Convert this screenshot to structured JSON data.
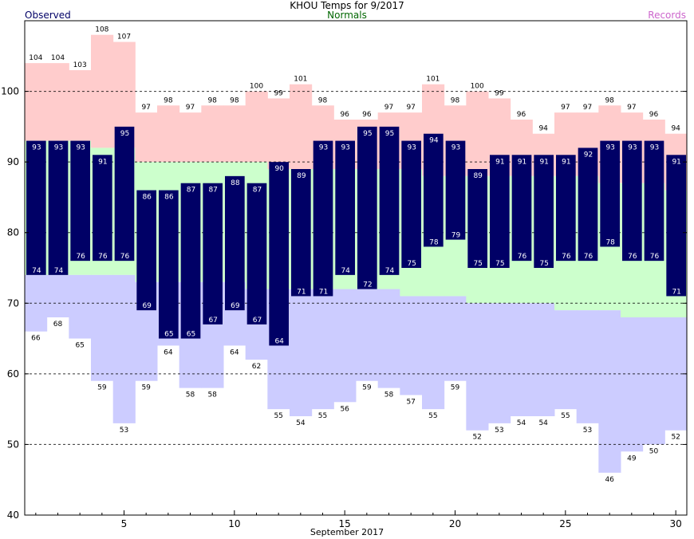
{
  "header": {
    "title": "KHOU Temps for 9/2017",
    "normals_label": "Normals",
    "observed_label": "Observed",
    "records_label": "Records"
  },
  "colors": {
    "record_band": "#ffcccc",
    "normal_band": "#ccffcc",
    "record_low_band": "#ccccff",
    "observed_bar": "#000066",
    "observed_text": "#ffffff",
    "grid": "#000000"
  },
  "chart_data": {
    "type": "bar",
    "title": "KHOU Temps for 9/2017",
    "xlabel": "September 2017",
    "ylabel": "",
    "ylim": [
      40,
      110
    ],
    "xlim": [
      0.5,
      30.5
    ],
    "yticks": [
      40,
      50,
      60,
      70,
      80,
      90,
      100
    ],
    "ytick_labels": [
      "40",
      "50",
      "60",
      "70",
      "80",
      "90",
      "100"
    ],
    "xticks": [
      5,
      10,
      15,
      20,
      25,
      30
    ],
    "xtick_labels": [
      "5",
      "10",
      "15",
      "20",
      "25",
      "30"
    ],
    "grid": "horizontal dashed at 50, 60, 70, 80, 90, 100",
    "days": [
      1,
      2,
      3,
      4,
      5,
      6,
      7,
      8,
      9,
      10,
      11,
      12,
      13,
      14,
      15,
      16,
      17,
      18,
      19,
      20,
      21,
      22,
      23,
      24,
      25,
      26,
      27,
      28,
      29,
      30
    ],
    "series": [
      {
        "name": "Observed",
        "role": "observed_high",
        "values": [
          93,
          93,
          93,
          91,
          95,
          86,
          86,
          87,
          87,
          88,
          87,
          90,
          89,
          93,
          93,
          95,
          95,
          93,
          94,
          93,
          89,
          91,
          91,
          91,
          91,
          92,
          93,
          93,
          93,
          91
        ]
      },
      {
        "name": "Observed",
        "role": "observed_low",
        "values": [
          74,
          74,
          76,
          76,
          76,
          69,
          65,
          65,
          67,
          69,
          67,
          64,
          71,
          71,
          74,
          72,
          74,
          75,
          78,
          79,
          75,
          75,
          76,
          75,
          76,
          76,
          78,
          76,
          76,
          71
        ]
      },
      {
        "name": "Normals",
        "role": "normal_high",
        "values": [
          93,
          93,
          93,
          92,
          92,
          90,
          90,
          90,
          90,
          90,
          90,
          89,
          89,
          89,
          89,
          89,
          89,
          89,
          88,
          88,
          88,
          88,
          88,
          88,
          88,
          88,
          87,
          87,
          87,
          86
        ]
      },
      {
        "name": "Normals",
        "role": "normal_low",
        "values": [
          74,
          74,
          74,
          74,
          74,
          73,
          73,
          73,
          73,
          73,
          72,
          72,
          72,
          72,
          72,
          72,
          72,
          71,
          71,
          71,
          70,
          70,
          70,
          70,
          69,
          69,
          69,
          68,
          68,
          68
        ]
      },
      {
        "name": "Records",
        "role": "record_high",
        "values": [
          104,
          104,
          103,
          108,
          107,
          97,
          98,
          97,
          98,
          98,
          100,
          99,
          101,
          98,
          96,
          96,
          97,
          97,
          101,
          98,
          100,
          99,
          96,
          94,
          97,
          97,
          98,
          97,
          96,
          94
        ]
      },
      {
        "name": "Records",
        "role": "record_low",
        "values": [
          66,
          68,
          65,
          59,
          53,
          59,
          64,
          58,
          58,
          64,
          62,
          55,
          54,
          55,
          56,
          59,
          58,
          57,
          55,
          59,
          52,
          53,
          54,
          54,
          55,
          53,
          46,
          49,
          50,
          52
        ]
      }
    ]
  }
}
